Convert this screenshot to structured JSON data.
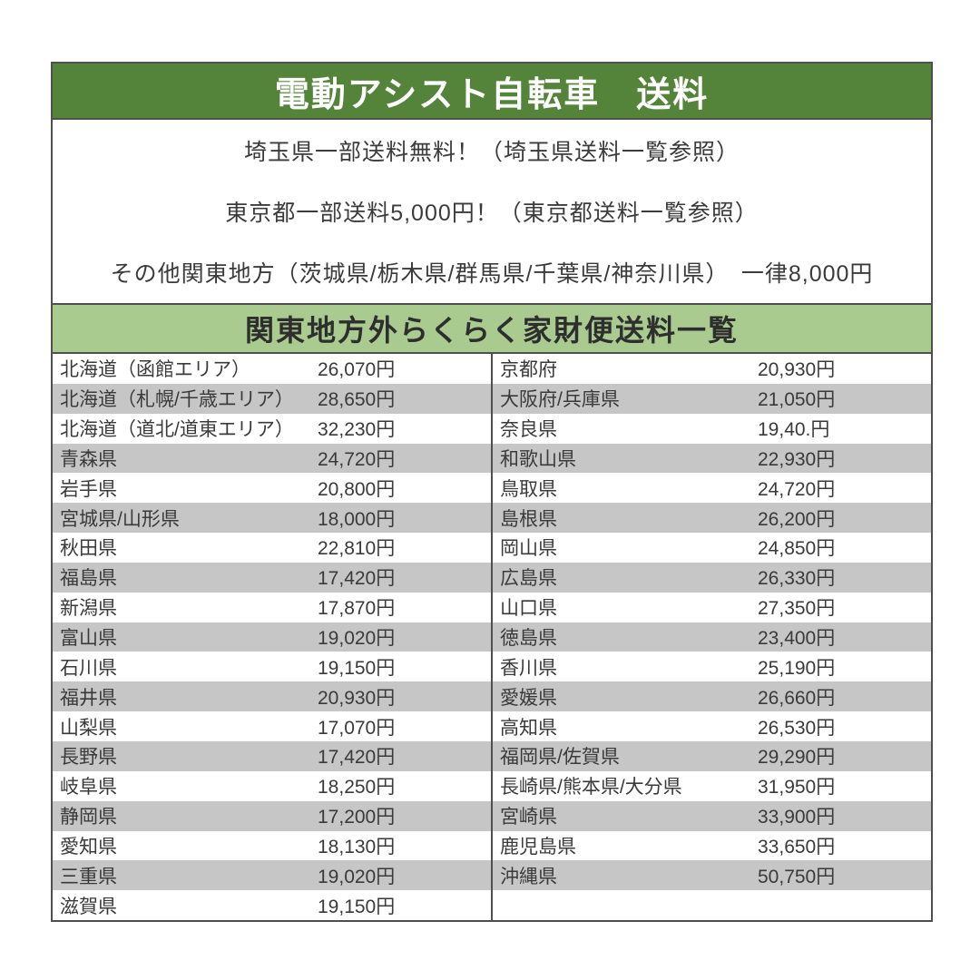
{
  "header": {
    "title": "電動アシスト自転車　送料"
  },
  "notices": {
    "lines": [
      "埼玉県一部送料無料！（埼玉県送料一覧参照）",
      "東京都一部送料5,000円！（東京都送料一覧参照）",
      "その他関東地方（茨城県/栃木県/群馬県/千葉県/神奈川県）　一律8,000円"
    ]
  },
  "subheader": {
    "title": "関東地方外らくらく家財便送料一覧"
  },
  "table": {
    "left_rows": [
      {
        "region": "北海道（函館エリア）",
        "fee": "26,070円"
      },
      {
        "region": "北海道（札幌/千歳エリア）",
        "fee": "28,650円"
      },
      {
        "region": "北海道（道北/道東エリア）",
        "fee": "32,230円"
      },
      {
        "region": "青森県",
        "fee": "24,720円"
      },
      {
        "region": "岩手県",
        "fee": "20,800円"
      },
      {
        "region": "宮城県/山形県",
        "fee": "18,000円"
      },
      {
        "region": "秋田県",
        "fee": "22,810円"
      },
      {
        "region": "福島県",
        "fee": "17,420円"
      },
      {
        "region": "新潟県",
        "fee": "17,870円"
      },
      {
        "region": "富山県",
        "fee": "19,020円"
      },
      {
        "region": "石川県",
        "fee": "19,150円"
      },
      {
        "region": "福井県",
        "fee": "20,930円"
      },
      {
        "region": "山梨県",
        "fee": "17,070円"
      },
      {
        "region": "長野県",
        "fee": "17,420円"
      },
      {
        "region": "岐阜県",
        "fee": "18,250円"
      },
      {
        "region": "静岡県",
        "fee": "17,200円"
      },
      {
        "region": "愛知県",
        "fee": "18,130円"
      },
      {
        "region": "三重県",
        "fee": "19,020円"
      },
      {
        "region": "滋賀県",
        "fee": "19,150円"
      }
    ],
    "right_rows": [
      {
        "region": "京都府",
        "fee": "20,930円"
      },
      {
        "region": "大阪府/兵庫県",
        "fee": "21,050円"
      },
      {
        "region": "奈良県",
        "fee": "19,40.円"
      },
      {
        "region": "和歌山県",
        "fee": "22,930円"
      },
      {
        "region": "鳥取県",
        "fee": "24,720円"
      },
      {
        "region": "島根県",
        "fee": "26,200円"
      },
      {
        "region": "岡山県",
        "fee": "24,850円"
      },
      {
        "region": "広島県",
        "fee": "26,330円"
      },
      {
        "region": "山口県",
        "fee": "27,350円"
      },
      {
        "region": "徳島県",
        "fee": "23,400円"
      },
      {
        "region": "香川県",
        "fee": "25,190円"
      },
      {
        "region": "愛媛県",
        "fee": "26,660円"
      },
      {
        "region": "高知県",
        "fee": "26,530円"
      },
      {
        "region": "福岡県/佐賀県",
        "fee": "29,290円"
      },
      {
        "region": "長崎県/熊本県/大分県",
        "fee": "31,950円"
      },
      {
        "region": "宮崎県",
        "fee": "33,900円"
      },
      {
        "region": "鹿児島県",
        "fee": "33,650円"
      },
      {
        "region": "沖縄県",
        "fee": "50,750円"
      },
      {
        "region": "",
        "fee": ""
      }
    ]
  },
  "colors": {
    "header_bg": "#54833a",
    "header_text": "#ffffff",
    "subheader_bg": "#a9cb8f",
    "stripe": "#c6c6c6",
    "border": "#4f504d",
    "text": "#3a3a3a"
  }
}
